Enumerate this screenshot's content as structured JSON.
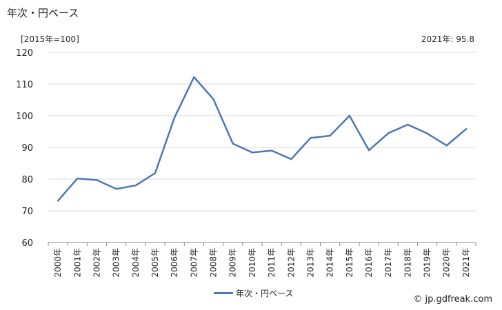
{
  "header": {
    "title": "年次・円ベース",
    "unit_label": "[2015年=100]",
    "latest_value_label": "2021年: 95.8"
  },
  "legend": {
    "series_label": "年次・円ベース"
  },
  "footer": {
    "credit": "© jp.gdfreak.com"
  },
  "colors": {
    "series": "#4a78b5",
    "grid": "#d9d9d9",
    "axis": "#888888"
  },
  "chart_data": {
    "type": "line",
    "title": "年次・円ベース",
    "xlabel": "",
    "ylabel": "[2015年=100]",
    "ylim": [
      60,
      120
    ],
    "yticks": [
      60,
      70,
      80,
      90,
      100,
      110,
      120
    ],
    "grid": true,
    "legend_position": "bottom",
    "categories": [
      "2000年",
      "2001年",
      "2002年",
      "2003年",
      "2004年",
      "2005年",
      "2006年",
      "2007年",
      "2008年",
      "2009年",
      "2010年",
      "2011年",
      "2012年",
      "2013年",
      "2014年",
      "2015年",
      "2016年",
      "2017年",
      "2018年",
      "2019年",
      "2020年",
      "2021年"
    ],
    "series": [
      {
        "name": "年次・円ベース",
        "values": [
          73.2,
          80.2,
          79.7,
          76.9,
          78.0,
          81.9,
          99.5,
          112.2,
          105.2,
          91.2,
          88.4,
          89.0,
          86.3,
          93.0,
          93.7,
          100.0,
          89.1,
          94.5,
          97.2,
          94.4,
          90.6,
          95.8
        ]
      }
    ]
  }
}
